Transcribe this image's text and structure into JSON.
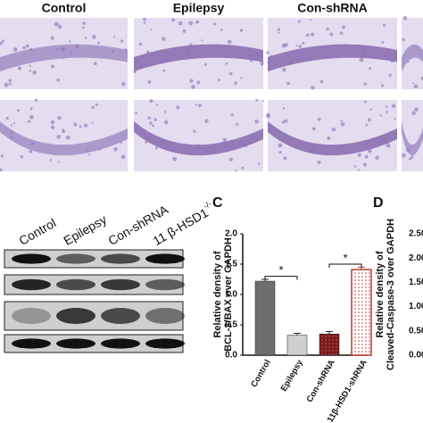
{
  "histology": {
    "labels": [
      "Control",
      "Epilepsy",
      "Con-shRNA"
    ]
  },
  "blot": {
    "labels": [
      "Control",
      "Epilepsy",
      "Con-shRNA",
      {
        "text": "11 β-HSD1",
        "sup": "-/-"
      }
    ]
  },
  "chart_data": [
    {
      "type": "bar",
      "panel": "C",
      "ylabel": [
        "Relative density of",
        "BCL-2/BAX over GAPDH"
      ],
      "categories": [
        "Control",
        "Epilepsy",
        "Con-shRNA",
        "11β-HSD1-shRNA"
      ],
      "values": [
        1.22,
        0.33,
        0.35,
        1.41
      ],
      "errors": [
        0.03,
        0.03,
        0.04,
        0.04
      ],
      "colors": [
        "#6e6e6e",
        "#cfcfcf",
        "#7a1c1c",
        "#ffffff"
      ],
      "ylim": [
        0,
        2
      ],
      "yticks": [
        {
          "value": 0,
          "label": "0.0"
        },
        {
          "value": 0.5,
          "label": "0.5"
        },
        {
          "value": 1,
          "label": "1.0"
        },
        {
          "value": 1.5,
          "label": "1.5"
        },
        {
          "value": 2,
          "label": "2.0"
        }
      ],
      "annotations": [
        "*",
        "*"
      ]
    },
    {
      "type": "axis",
      "panel": "D",
      "ylabel": [
        "Relative density of",
        "Cleaved-Caspase-3 over GAPDH"
      ],
      "ylim": [
        0,
        2.5
      ],
      "yticks": [
        {
          "value": 0,
          "label": "0.00"
        },
        {
          "value": 0.5,
          "label": "0.50"
        },
        {
          "value": 1,
          "label": "1.00"
        },
        {
          "value": 1.5,
          "label": "1.50"
        },
        {
          "value": 2,
          "label": "2.00"
        },
        {
          "value": 2.5,
          "label": "2.50"
        }
      ]
    }
  ]
}
